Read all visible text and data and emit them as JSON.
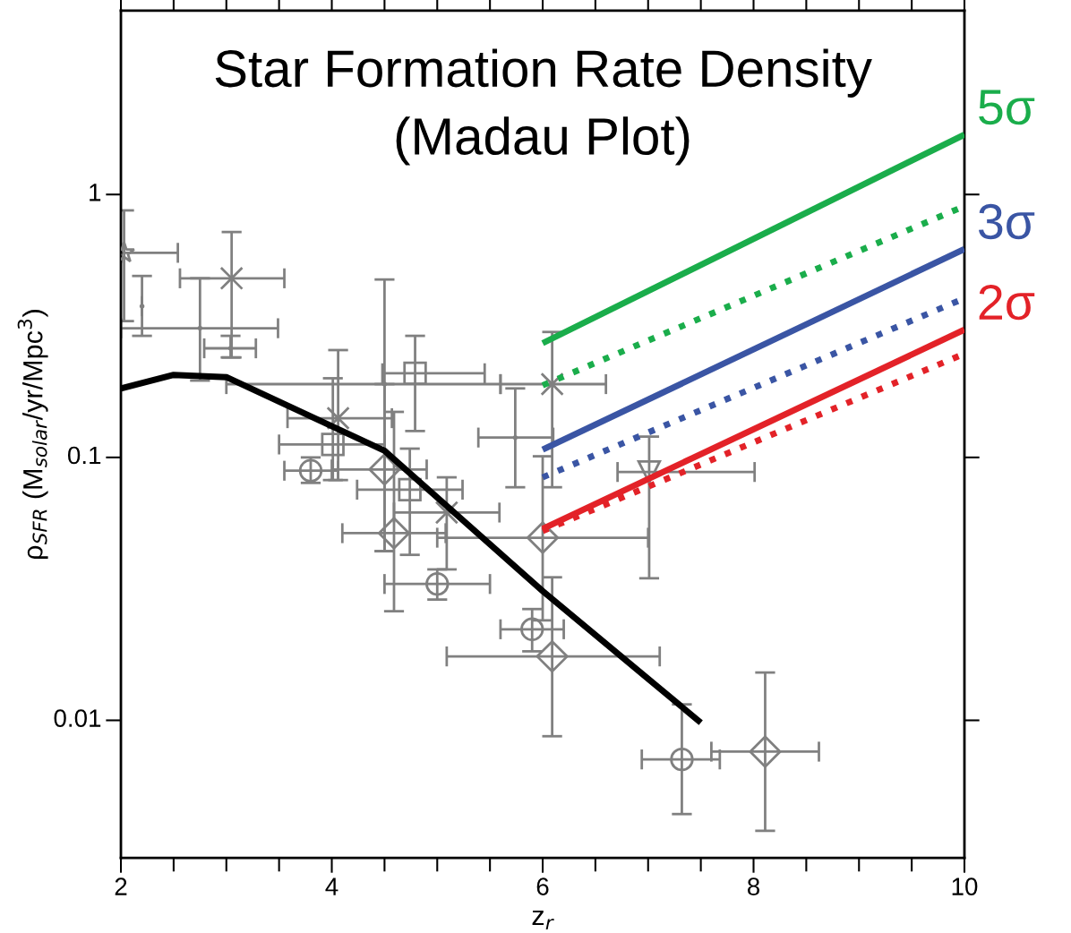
{
  "chart_data": {
    "type": "scatter",
    "title": "Star Formation Rate Density",
    "subtitle": "(Madau Plot)",
    "xlabel": "z$_{r}$",
    "ylabel": "ρ$_{SFR}$ (M$_{solar}$/yr/Mpc$^{3}$)",
    "log": "y",
    "xlim": [
      2,
      10
    ],
    "xticks": [
      2,
      4,
      6,
      8,
      10
    ],
    "ylim": [
      0.003,
      5
    ],
    "yticks": [
      0.01,
      0.1,
      1
    ],
    "grid": false,
    "legend": false,
    "series": [
      {
        "type": "scatter",
        "marker": "star",
        "color": "#808080",
        "x": [
          2.03
        ],
        "values": [
          0.6
        ],
        "errors": [
          [
            0.33,
            0.87
          ]
        ],
        "xerrors": [
          [
            2.0,
            2.54
          ]
        ]
      },
      {
        "type": "scatter",
        "marker": "cross",
        "color": "#808080",
        "x": [
          3.05,
          6.09,
          4.06,
          5.09
        ],
        "values": [
          0.48,
          0.19,
          0.141,
          0.0617
        ],
        "errors": [
          [
            0.24,
            0.72
          ],
          [
            0.077,
            0.3
          ],
          [
            0.082,
            0.256
          ],
          [
            0.0375,
            0.084
          ]
        ],
        "xerrors": [
          [
            2.56,
            3.55
          ],
          [
            5.6,
            6.6
          ],
          [
            3.58,
            4.57
          ],
          [
            4.59,
            5.59
          ]
        ]
      },
      {
        "type": "scatter",
        "marker": "none",
        "color": "#808080",
        "x": [
          2.75,
          2.2,
          3.04,
          4.5,
          5.74
        ],
        "values": [
          0.31,
          0.376,
          0.26,
          0.19,
          0.119
        ],
        "errors": [
          [
            0.196,
            0.48
          ],
          [
            0.29,
            0.49
          ],
          [
            0.24,
            0.29
          ],
          [
            0.044,
            0.475
          ],
          [
            0.077,
            0.183
          ]
        ],
        "xerrors": [
          [
            2.0,
            3.49
          ],
          null,
          [
            2.79,
            3.28
          ],
          [
            3.0,
            5.6
          ],
          [
            5.39,
            6.1
          ]
        ]
      },
      {
        "type": "scatter",
        "marker": "square",
        "color": "#808080",
        "x": [
          4.79,
          4.01,
          4.74
        ],
        "values": [
          0.209,
          0.112,
          0.0754
        ],
        "errors": [
          [
            0.126,
            0.29
          ],
          [
            0.082,
            0.2
          ],
          [
            0.0426,
            0.108
          ]
        ],
        "xerrors": [
          [
            4.48,
            5.45
          ],
          [
            3.5,
            4.5
          ],
          [
            4.24,
            5.24
          ]
        ]
      },
      {
        "type": "scatter",
        "marker": "circle",
        "color": "#808080",
        "x": [
          3.8,
          5.0,
          5.9,
          7.32
        ],
        "values": [
          0.089,
          0.033,
          0.0222,
          0.0071
        ],
        "errors": [
          [
            0.08,
            0.1
          ],
          [
            0.0288,
            0.0375
          ],
          [
            0.0183,
            0.0265
          ],
          [
            0.0044,
            0.0115
          ]
        ],
        "xerrors": [
          [
            3.55,
            4.06
          ],
          [
            4.5,
            5.5
          ],
          [
            5.6,
            6.2
          ],
          [
            6.94,
            7.68
          ]
        ]
      },
      {
        "type": "scatter",
        "marker": "diamond",
        "color": "#808080",
        "x": [
          4.5,
          4.59,
          6.0,
          6.09,
          8.11
        ],
        "values": [
          0.09,
          0.0515,
          0.0495,
          0.0175,
          0.0076
        ],
        "errors": [
          [
            0.044,
            0.19
          ],
          [
            0.026,
            0.149
          ],
          [
            0.024,
            0.101
          ],
          [
            0.0087,
            0.035
          ],
          [
            0.0038,
            0.0152
          ]
        ],
        "xerrors": [
          [
            4.0,
            4.9
          ],
          [
            4.1,
            5.08
          ],
          [
            5.0,
            7.0
          ],
          [
            5.09,
            7.11
          ],
          [
            7.6,
            8.62
          ]
        ]
      },
      {
        "type": "scatter",
        "marker": "triangle",
        "color": "#808080",
        "x": [
          7.01
        ],
        "values": [
          0.088
        ],
        "errors": [
          [
            0.0347,
            0.12
          ]
        ],
        "xerrors": [
          [
            6.71,
            8.01
          ]
        ]
      },
      {
        "type": "line",
        "color": "#000000",
        "line_style": "solid",
        "x": [
          2,
          2.5,
          3,
          4.5,
          6,
          7.5
        ],
        "values": [
          0.183,
          0.206,
          0.202,
          0.106,
          0.031,
          0.0098
        ]
      },
      {
        "type": "line",
        "name": "5σ",
        "color": "#1aad4b",
        "line_style": "solid",
        "x": [
          6,
          10
        ],
        "values": [
          0.272,
          1.69
        ]
      },
      {
        "type": "line",
        "color": "#1aad4b",
        "line_style": "dotted",
        "x": [
          6,
          10
        ],
        "values": [
          0.188,
          0.903
        ]
      },
      {
        "type": "line",
        "name": "3σ",
        "color": "#3a55a4",
        "line_style": "solid",
        "x": [
          6,
          10
        ],
        "values": [
          0.107,
          0.62
        ]
      },
      {
        "type": "line",
        "color": "#3a55a4",
        "line_style": "dotted",
        "x": [
          6,
          10
        ],
        "values": [
          0.084,
          0.403
        ]
      },
      {
        "type": "line",
        "name": "2σ",
        "color": "#e32228",
        "line_style": "solid",
        "x": [
          6,
          10
        ],
        "values": [
          0.0535,
          0.306
        ]
      },
      {
        "type": "line",
        "color": "#e32228",
        "line_style": "dotted",
        "x": [
          6,
          10
        ],
        "values": [
          0.0525,
          0.248
        ]
      }
    ]
  }
}
